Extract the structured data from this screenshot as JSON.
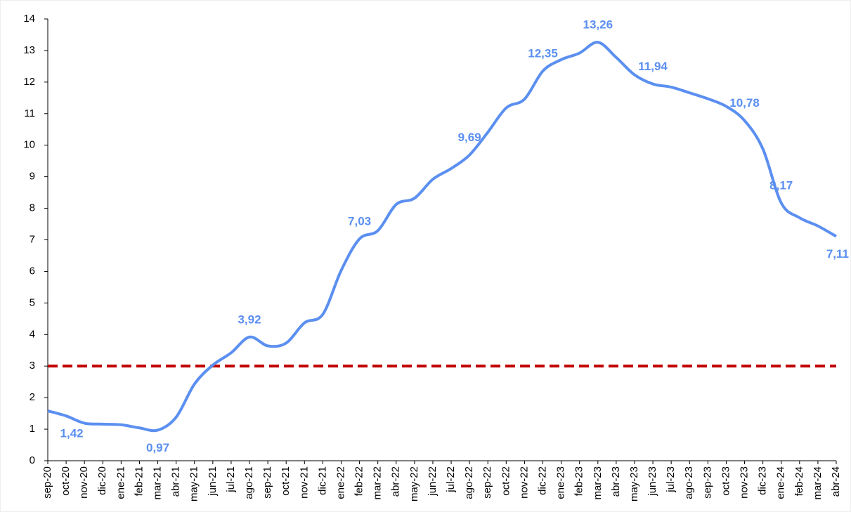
{
  "chart_data": {
    "type": "line",
    "categories": [
      "sep-20",
      "oct-20",
      "nov-20",
      "dic-20",
      "ene-21",
      "feb-21",
      "mar-21",
      "abr-21",
      "may-21",
      "jun-21",
      "jul-21",
      "ago-21",
      "sep-21",
      "oct-21",
      "nov-21",
      "dic-21",
      "ene-22",
      "feb-22",
      "mar-22",
      "abr-22",
      "may-22",
      "jun-22",
      "jul-22",
      "ago-22",
      "sep-22",
      "oct-22",
      "nov-22",
      "dic-22",
      "ene-23",
      "feb-23",
      "mar-23",
      "abr-23",
      "may-23",
      "jun-23",
      "jul-23",
      "ago-23",
      "sep-23",
      "oct-23",
      "nov-23",
      "dic-23",
      "ene-24",
      "feb-24",
      "mar-24",
      "abr-24"
    ],
    "series": [
      {
        "color": "#5b8ff0",
        "values": [
          1.58,
          1.42,
          1.19,
          1.16,
          1.14,
          1.04,
          0.97,
          1.38,
          2.43,
          3.03,
          3.42,
          3.92,
          3.64,
          3.73,
          4.37,
          4.64,
          6.03,
          7.03,
          7.29,
          8.12,
          8.32,
          8.92,
          9.26,
          9.69,
          10.41,
          11.18,
          11.46,
          12.35,
          12.71,
          12.92,
          13.26,
          12.78,
          12.23,
          11.94,
          11.84,
          11.66,
          11.47,
          11.23,
          10.78,
          9.88,
          8.17,
          7.7,
          7.44,
          7.11
        ],
        "value_labels": [
          null,
          "1,42",
          null,
          null,
          null,
          null,
          "0,97",
          null,
          null,
          null,
          null,
          "3,92",
          null,
          null,
          null,
          null,
          null,
          "7,03",
          null,
          null,
          null,
          null,
          null,
          "9,69",
          null,
          null,
          null,
          "12,35",
          null,
          null,
          "13,26",
          null,
          null,
          "11,94",
          null,
          null,
          null,
          null,
          "10,78",
          null,
          "8,17",
          null,
          null,
          "7,11"
        ]
      }
    ],
    "reference_line": {
      "value": 3,
      "color": "#c00000"
    },
    "ylim": [
      0,
      14
    ],
    "yticks": [
      0,
      1,
      2,
      3,
      4,
      5,
      6,
      7,
      8,
      9,
      10,
      11,
      12,
      13,
      14
    ],
    "grid": false
  }
}
